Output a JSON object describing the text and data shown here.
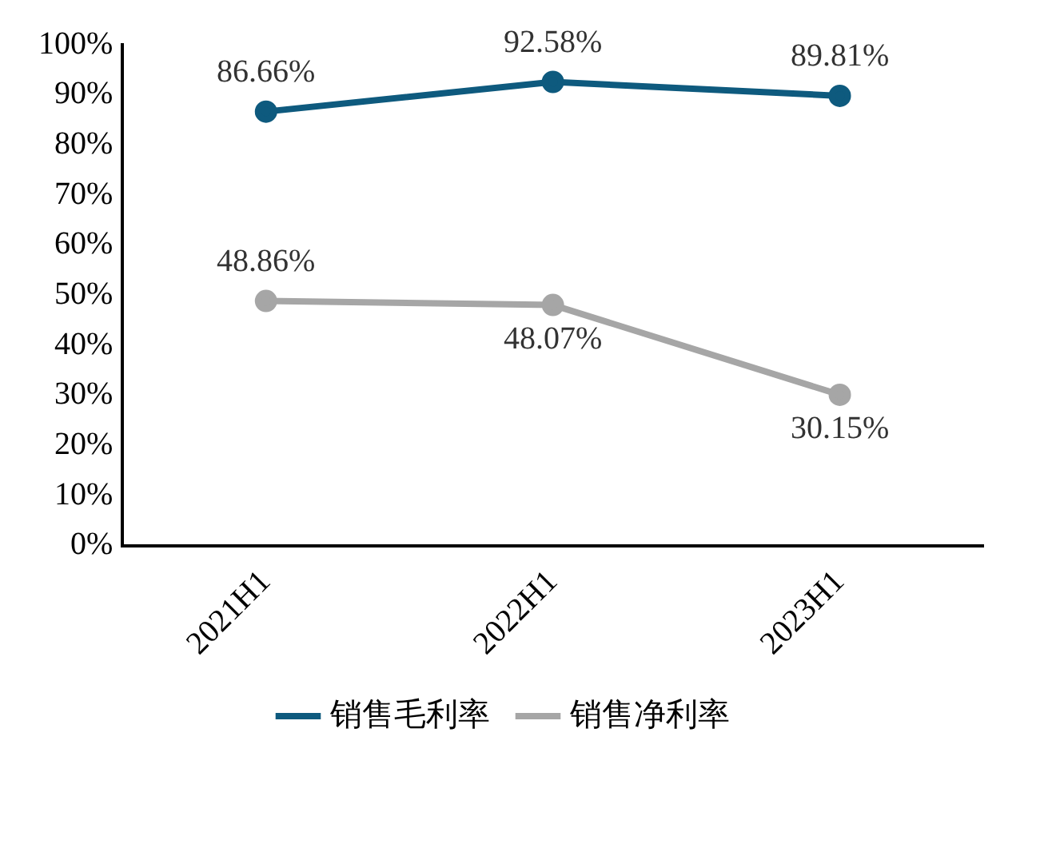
{
  "chart_data": {
    "type": "line",
    "categories": [
      "2021H1",
      "2022H1",
      "2023H1"
    ],
    "series": [
      {
        "name": "销售毛利率",
        "color": "#0e5a7e",
        "values": [
          86.66,
          92.58,
          89.81
        ],
        "value_labels": [
          "86.66%",
          "92.58%",
          "89.81%"
        ]
      },
      {
        "name": "销售净利率",
        "color": "#a6a6a6",
        "values": [
          48.86,
          48.07,
          30.15
        ],
        "value_labels": [
          "48.86%",
          "48.07%",
          "30.15%"
        ]
      }
    ],
    "ylim": [
      0,
      100
    ],
    "yticks": [
      {
        "value": 0,
        "label": "0%"
      },
      {
        "value": 10,
        "label": "10%"
      },
      {
        "value": 20,
        "label": "20%"
      },
      {
        "value": 30,
        "label": "30%"
      },
      {
        "value": 40,
        "label": "40%"
      },
      {
        "value": 50,
        "label": "50%"
      },
      {
        "value": 60,
        "label": "60%"
      },
      {
        "value": 70,
        "label": "70%"
      },
      {
        "value": 80,
        "label": "80%"
      },
      {
        "value": 90,
        "label": "90%"
      },
      {
        "value": 100,
        "label": "100%"
      }
    ],
    "grid": false,
    "legend": "bottom",
    "marker": "circle",
    "line_style": "solid"
  }
}
